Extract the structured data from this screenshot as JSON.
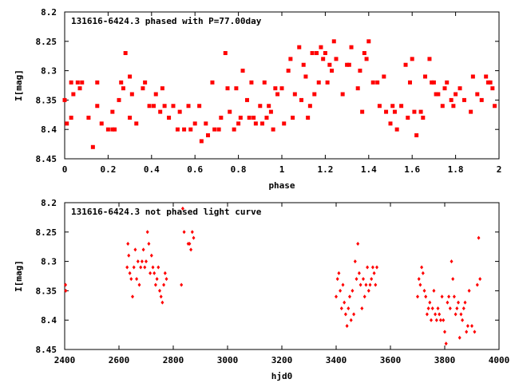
{
  "chart_data": [
    {
      "type": "scatter",
      "title": "131616-6424.3 phased with P=77.00day",
      "xlabel": "phase",
      "ylabel": "I[mag]",
      "xlim": [
        0,
        2
      ],
      "ylim": [
        8.2,
        8.45
      ],
      "y_inverted": true,
      "xticks": [
        "0",
        "0.2",
        "0.4",
        "0.6",
        "0.8",
        "1",
        "1.2",
        "1.4",
        "1.6",
        "1.8",
        "2"
      ],
      "yticks": [
        "8.2",
        "8.25",
        "8.3",
        "8.35",
        "8.4",
        "8.45"
      ],
      "marker": "filled square",
      "color": "#ff0000",
      "series": [
        {
          "x": [
            0.0,
            0.01,
            0.03,
            0.03,
            0.04,
            0.06,
            0.07,
            0.08,
            0.11,
            0.13,
            0.15,
            0.15,
            0.17,
            0.2,
            0.22,
            0.22,
            0.23,
            0.25,
            0.26,
            0.27,
            0.28,
            0.3,
            0.3,
            0.31,
            0.33,
            0.36,
            0.37,
            0.39,
            0.41,
            0.42,
            0.44,
            0.45,
            0.46,
            0.48,
            0.5,
            0.52,
            0.53,
            0.55,
            0.57,
            0.58,
            0.6,
            0.62,
            0.63,
            0.65,
            0.66,
            0.68,
            0.69,
            0.71,
            0.72,
            0.74,
            0.75,
            0.76,
            0.78,
            0.79,
            0.8,
            0.81,
            0.82,
            0.84,
            0.85,
            0.86,
            0.87,
            0.88,
            0.9,
            0.91,
            0.92,
            0.93,
            0.94,
            0.95,
            0.96,
            0.97,
            0.98,
            1.0,
            1.01,
            1.03,
            1.04,
            1.05,
            1.06,
            1.08,
            1.09,
            1.1,
            1.11,
            1.12,
            1.13,
            1.14,
            1.15,
            1.16,
            1.17,
            1.18,
            1.19,
            1.2,
            1.21,
            1.22,
            1.23,
            1.24,
            1.25,
            1.28,
            1.3,
            1.31,
            1.32,
            1.35,
            1.36,
            1.37,
            1.38,
            1.39,
            1.4,
            1.42,
            1.44,
            1.45,
            1.47,
            1.48,
            1.5,
            1.51,
            1.52,
            1.53,
            1.55,
            1.57,
            1.58,
            1.59,
            1.6,
            1.61,
            1.62,
            1.64,
            1.65,
            1.66,
            1.68,
            1.69,
            1.7,
            1.71,
            1.72,
            1.74,
            1.75,
            1.76,
            1.78,
            1.79,
            1.8,
            1.82,
            1.84,
            1.87,
            1.88,
            1.9,
            1.92,
            1.94,
            1.95,
            1.96,
            1.97,
            1.98
          ],
          "y": [
            8.35,
            8.39,
            8.32,
            8.38,
            8.34,
            8.32,
            8.33,
            8.32,
            8.38,
            8.43,
            8.32,
            8.36,
            8.39,
            8.4,
            8.4,
            8.37,
            8.4,
            8.35,
            8.32,
            8.33,
            8.27,
            8.31,
            8.38,
            8.34,
            8.39,
            8.33,
            8.32,
            8.36,
            8.36,
            8.34,
            8.37,
            8.33,
            8.36,
            8.38,
            8.36,
            8.4,
            8.37,
            8.4,
            8.36,
            8.4,
            8.39,
            8.36,
            8.42,
            8.39,
            8.41,
            8.32,
            8.4,
            8.4,
            8.38,
            8.27,
            8.33,
            8.37,
            8.4,
            8.33,
            8.39,
            8.38,
            8.3,
            8.35,
            8.38,
            8.32,
            8.38,
            8.39,
            8.36,
            8.39,
            8.32,
            8.38,
            8.36,
            8.37,
            8.4,
            8.33,
            8.34,
            8.33,
            8.39,
            8.3,
            8.28,
            8.38,
            8.34,
            8.26,
            8.35,
            8.29,
            8.31,
            8.38,
            8.36,
            8.27,
            8.34,
            8.27,
            8.32,
            8.26,
            8.28,
            8.27,
            8.32,
            8.29,
            8.3,
            8.25,
            8.28,
            8.34,
            8.29,
            8.29,
            8.26,
            8.33,
            8.3,
            8.37,
            8.27,
            8.28,
            8.25,
            8.32,
            8.32,
            8.36,
            8.31,
            8.37,
            8.39,
            8.36,
            8.37,
            8.4,
            8.36,
            8.29,
            8.38,
            8.32,
            8.28,
            8.37,
            8.41,
            8.37,
            8.38,
            8.31,
            8.28,
            8.32,
            8.32,
            8.34,
            8.34,
            8.36,
            8.33,
            8.32,
            8.35,
            8.36,
            8.34,
            8.33,
            8.35,
            8.37,
            8.31,
            8.34,
            8.35,
            8.31,
            8.32,
            8.32,
            8.33,
            8.36
          ]
        }
      ]
    },
    {
      "type": "scatter",
      "title": "131616-6424.3 not phased light curve",
      "xlabel": "hjd0",
      "ylabel": "I[mag]",
      "xlim": [
        2400,
        4000
      ],
      "ylim": [
        8.2,
        8.45
      ],
      "y_inverted": true,
      "xticks": [
        "2400",
        "2600",
        "2800",
        "3000",
        "3200",
        "3400",
        "3600",
        "3800",
        "4000"
      ],
      "yticks": [
        "8.2",
        "8.25",
        "8.3",
        "8.35",
        "8.4",
        "8.45"
      ],
      "marker": "diamond",
      "color": "#ff0000",
      "series": [
        {
          "x": [
            2403,
            2404,
            2630,
            2633,
            2636,
            2640,
            2645,
            2650,
            2655,
            2660,
            2665,
            2670,
            2675,
            2680,
            2685,
            2690,
            2695,
            2700,
            2705,
            2710,
            2715,
            2720,
            2725,
            2730,
            2735,
            2740,
            2745,
            2750,
            2755,
            2760,
            2765,
            2770,
            2775,
            2830,
            2835,
            2840,
            2855,
            2860,
            2865,
            2870,
            2875,
            3400,
            3405,
            3410,
            3415,
            3420,
            3425,
            3430,
            3435,
            3440,
            3445,
            3450,
            3455,
            3460,
            3465,
            3470,
            3475,
            3480,
            3485,
            3490,
            3495,
            3500,
            3505,
            3510,
            3515,
            3520,
            3525,
            3530,
            3535,
            3540,
            3545,
            3550,
            3700,
            3705,
            3710,
            3715,
            3720,
            3725,
            3730,
            3735,
            3740,
            3745,
            3750,
            3755,
            3760,
            3765,
            3770,
            3775,
            3780,
            3785,
            3790,
            3795,
            3800,
            3805,
            3810,
            3815,
            3820,
            3825,
            3830,
            3835,
            3840,
            3845,
            3850,
            3855,
            3860,
            3865,
            3870,
            3875,
            3880,
            3885,
            3890,
            3900,
            3910,
            3920,
            3925,
            3930
          ],
          "y": [
            8.34,
            8.35,
            8.31,
            8.27,
            8.29,
            8.32,
            8.33,
            8.36,
            8.31,
            8.28,
            8.33,
            8.3,
            8.34,
            8.31,
            8.3,
            8.28,
            8.31,
            8.3,
            8.25,
            8.27,
            8.32,
            8.29,
            8.31,
            8.32,
            8.34,
            8.33,
            8.31,
            8.35,
            8.36,
            8.37,
            8.34,
            8.32,
            8.33,
            8.34,
            8.21,
            8.25,
            8.27,
            8.27,
            8.28,
            8.25,
            8.26,
            8.36,
            8.33,
            8.32,
            8.35,
            8.38,
            8.34,
            8.37,
            8.39,
            8.41,
            8.38,
            8.36,
            8.4,
            8.35,
            8.39,
            8.3,
            8.33,
            8.27,
            8.32,
            8.34,
            8.38,
            8.33,
            8.36,
            8.34,
            8.31,
            8.35,
            8.34,
            8.33,
            8.31,
            8.32,
            8.34,
            8.31,
            8.36,
            8.33,
            8.34,
            8.31,
            8.32,
            8.35,
            8.36,
            8.39,
            8.38,
            8.37,
            8.4,
            8.38,
            8.35,
            8.39,
            8.4,
            8.38,
            8.39,
            8.4,
            8.36,
            8.4,
            8.42,
            8.44,
            8.37,
            8.36,
            8.38,
            8.3,
            8.33,
            8.36,
            8.39,
            8.38,
            8.37,
            8.43,
            8.39,
            8.4,
            8.38,
            8.37,
            8.42,
            8.41,
            8.35,
            8.41,
            8.42,
            8.34,
            8.26,
            8.33
          ]
        }
      ]
    }
  ]
}
